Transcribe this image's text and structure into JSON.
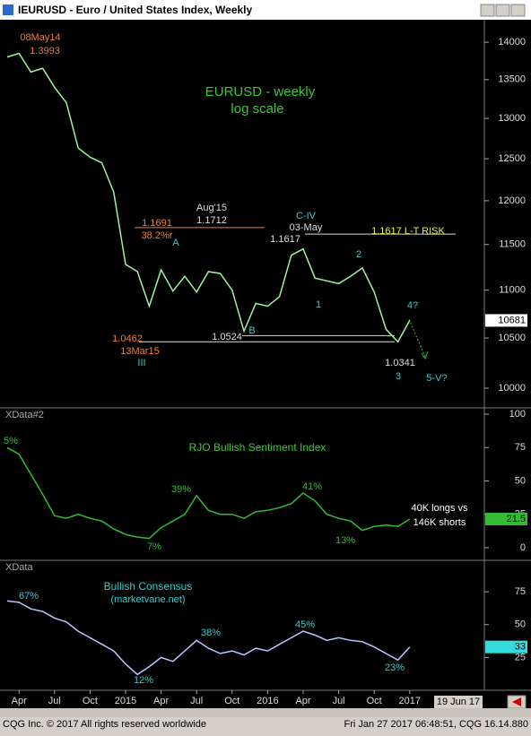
{
  "window": {
    "title": "IEURUSD - Euro / United States Index, Weekly",
    "footer_left": "CQG Inc. © 2017 All rights reserved worldwide",
    "footer_right": "Fri Jan 27 2017 06:48:51, CQG 16.14.880",
    "future_date": "19 Jun 17"
  },
  "chart_data": [
    {
      "type": "line",
      "title": "EURUSD - weekly",
      "subtitle": "log scale",
      "log_scale": true,
      "color": "#9cf59c",
      "categories": [
        null,
        "Apr",
        null,
        null,
        "Jul",
        null,
        null,
        "Oct",
        null,
        null,
        "2015",
        null,
        null,
        "Apr",
        null,
        null,
        "Jul",
        null,
        null,
        "Oct",
        null,
        null,
        "2016",
        null,
        null,
        "Apr",
        null,
        null,
        "Jul",
        null,
        null,
        "Oct",
        null,
        null,
        "2017"
      ],
      "values": [
        13800,
        13850,
        13600,
        13650,
        13400,
        13200,
        12630,
        12520,
        12450,
        12100,
        11280,
        11200,
        10830,
        11220,
        10990,
        11150,
        10980,
        11200,
        11180,
        11000,
        10570,
        10860,
        10830,
        10930,
        11380,
        11450,
        11130,
        11100,
        11070,
        11150,
        11240,
        10980,
        10590,
        10460,
        10681
      ],
      "ylim": [
        9810,
        14310
      ],
      "yticks": [
        10000,
        10500,
        11000,
        11500,
        12000,
        12500,
        13000,
        13500,
        14000
      ],
      "levels": [
        {
          "value": 11691,
          "color": "#e8803a"
        },
        {
          "value": 11617,
          "color": "#dddddd"
        },
        {
          "value": 10524,
          "color": "#dddddd"
        },
        {
          "value": 10462,
          "color": "#dddddd"
        }
      ],
      "annotations": [
        {
          "text": "08May14",
          "color": "#e8803a"
        },
        {
          "text": "1.3993",
          "color": "#e8803a"
        },
        {
          "text": "Aug'15",
          "color": "#dddddd"
        },
        {
          "text": "1.1712",
          "color": "#dddddd"
        },
        {
          "text": "1.1691",
          "color": "#e8803a"
        },
        {
          "text": "38.2%r",
          "color": "#e8803a"
        },
        {
          "text": "A",
          "color": "#33cccc"
        },
        {
          "text": "C-IV",
          "color": "#33cccc"
        },
        {
          "text": "03-May",
          "color": "#dddddd"
        },
        {
          "text": "1.1617",
          "color": "#dddddd"
        },
        {
          "text": "1.1617 L-T RISK",
          "color": "#f0f040"
        },
        {
          "text": "2",
          "color": "#33cccc"
        },
        {
          "text": "1",
          "color": "#33cccc"
        },
        {
          "text": "4?",
          "color": "#33cccc"
        },
        {
          "text": "B",
          "color": "#33cccc"
        },
        {
          "text": "1.0462",
          "color": "#e8803a"
        },
        {
          "text": "13Mar15",
          "color": "#e8803a"
        },
        {
          "text": "III",
          "color": "#33cccc"
        },
        {
          "text": "1.0524",
          "color": "#dddddd"
        },
        {
          "text": "1.0341",
          "color": "#dddddd"
        },
        {
          "text": "3",
          "color": "#33cccc"
        },
        {
          "text": "5-V?",
          "color": "#33cccc"
        }
      ]
    },
    {
      "type": "line",
      "panel_title": "XData#2",
      "title": "RJO Bullish Sentiment Index",
      "color": "#33bb33",
      "values": [
        75,
        70,
        55,
        40,
        24,
        22,
        25,
        22,
        20,
        14,
        10,
        8,
        7,
        15,
        20,
        25,
        39,
        28,
        25,
        25,
        22,
        27,
        28,
        30,
        33,
        41,
        35,
        25,
        22,
        20,
        13,
        16,
        17,
        16,
        21.5
      ],
      "ylim": [
        -9.4,
        104.7
      ],
      "yticks": [
        0,
        25,
        50,
        75,
        100
      ],
      "annotations": [
        {
          "text": "5%",
          "color": "#33bb33"
        },
        {
          "text": "39%",
          "color": "#33bb33"
        },
        {
          "text": "41%",
          "color": "#33bb33"
        },
        {
          "text": "7%",
          "color": "#33bb33"
        },
        {
          "text": "13%",
          "color": "#33bb33"
        },
        {
          "text": "40K longs vs",
          "color": "#ffffff"
        },
        {
          "text": "146K shorts",
          "color": "#ffffff"
        }
      ]
    },
    {
      "type": "line",
      "panel_title": "XData",
      "title": "Bullish Consensus",
      "subtitle": "(marketvane.net)",
      "color": "#b8c8ff",
      "values": [
        68,
        67,
        62,
        60,
        55,
        52,
        45,
        40,
        35,
        30,
        20,
        12,
        18,
        25,
        22,
        30,
        38,
        32,
        28,
        30,
        27,
        32,
        30,
        35,
        40,
        45,
        42,
        38,
        40,
        38,
        37,
        33,
        28,
        23,
        33
      ],
      "ylim": [
        0,
        99
      ],
      "yticks": [
        25,
        50,
        75
      ],
      "annotations": [
        {
          "text": "67%",
          "color": "#33cccc"
        },
        {
          "text": "38%",
          "color": "#33cccc"
        },
        {
          "text": "45%",
          "color": "#33cccc"
        },
        {
          "text": "12%",
          "color": "#33cccc"
        },
        {
          "text": "23%",
          "color": "#33cccc"
        }
      ]
    }
  ]
}
